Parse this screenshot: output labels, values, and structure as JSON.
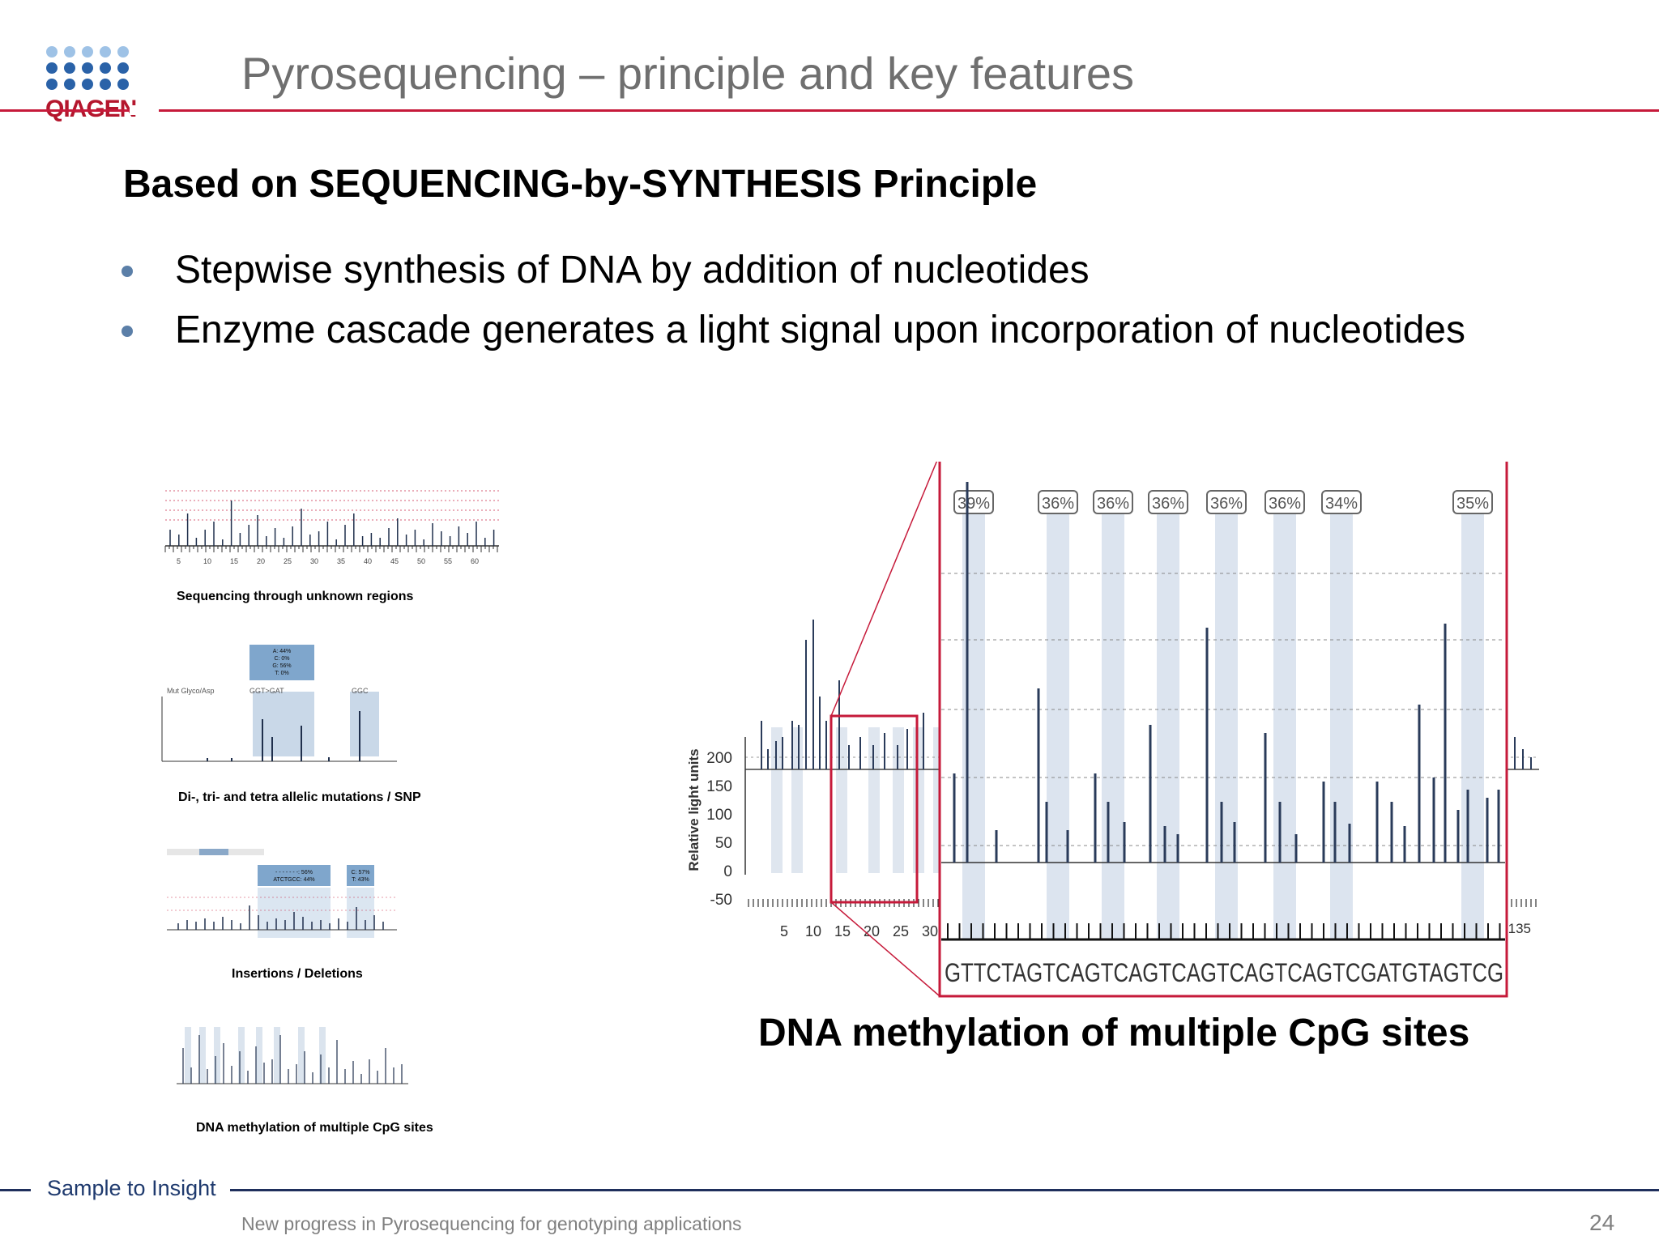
{
  "brand": {
    "logo_text": "QIAGEN",
    "logo_icon": "qiagen-dot-logo",
    "primary": "#c61a3a",
    "dot_color": "#2a62a8"
  },
  "header": {
    "title": "Pyrosequencing – principle and key features"
  },
  "main": {
    "subtitle": "Based on SEQUENCING-by-SYNTHESIS Principle",
    "bullets": [
      "Stepwise synthesis of DNA by addition of nucleotides",
      "Enzyme cascade generates a light signal upon incorporation of nucleotides"
    ]
  },
  "thumbnails": [
    {
      "caption": "Sequencing through unknown regions",
      "ticks": [
        "5",
        "10",
        "15",
        "20",
        "25",
        "30",
        "35",
        "40",
        "45",
        "50",
        "55",
        "60"
      ]
    },
    {
      "caption": "Di-, tri- and tetra allelic mutations / SNP",
      "labels": [
        "Mut Glyco/Asp",
        "GGT>GAT",
        "GGC"
      ],
      "box": [
        "A: 44%",
        "C: 0%",
        "G: 56%",
        "T: 0%"
      ]
    },
    {
      "caption": "Insertions / Deletions",
      "box1": [
        "- - - - - - -: 56%",
        "ATCTGCC: 44%"
      ],
      "box2": [
        "C: 57%",
        "T: 43%"
      ]
    },
    {
      "caption": "DNA methylation of multiple CpG sites"
    }
  ],
  "big_chart": {
    "caption": "DNA methylation of multiple CpG sites",
    "ylabel": "Relative light units",
    "yticks": [
      "200",
      "150",
      "100",
      "50",
      "0",
      "-50"
    ],
    "xticks": [
      "5",
      "10",
      "15",
      "20",
      "25",
      "30"
    ],
    "xtick_right": "135",
    "percent_labels": [
      "39%",
      "36%",
      "36%",
      "36%",
      "36%",
      "36%",
      "34%",
      "35%"
    ],
    "sequence": "GTTCTAGTCAGTCAGTCAGTCAGTCAGTCGATGTAGTCG"
  },
  "footer": {
    "brand": "Sample to Insight",
    "text": "New progress in Pyrosequencing for genotyping applications",
    "page": "24"
  }
}
